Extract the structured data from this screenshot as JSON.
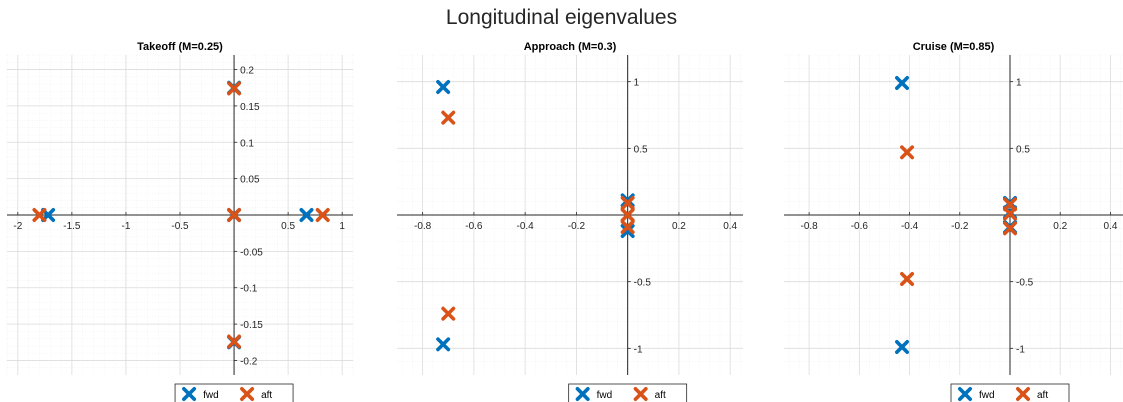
{
  "page": {
    "title": "Longitudinal eigenvalues"
  },
  "colors": {
    "fwd": "#0072BD",
    "aft": "#D95319",
    "axis": "#262626",
    "grid_major": "#dcdcdc",
    "grid_minor": "#efefef"
  },
  "chart_data": [
    {
      "type": "scatter",
      "title": "Takeoff (M=0.25)",
      "xlabel": "",
      "ylabel": "",
      "xlim": [
        -2.1,
        1.1
      ],
      "ylim": [
        -0.22,
        0.22
      ],
      "xticks": [
        -2,
        -1.5,
        -1,
        -0.5,
        0.5,
        1
      ],
      "xtick_labels": [
        "-2",
        "-1.5",
        "-1",
        "-0.5",
        "0.5",
        "1"
      ],
      "yticks": [
        0.2,
        0.15,
        0.1,
        0.05,
        -0.05,
        -0.1,
        -0.15,
        -0.2
      ],
      "ytick_labels": [
        "0.2",
        "0.15",
        "0.1",
        "0.05",
        "-0.05",
        "-0.1",
        "-0.15",
        "-0.2"
      ],
      "grid": true,
      "legend": "bottom",
      "series": [
        {
          "name": "fwd",
          "marker": "x",
          "points": [
            [
              -1.72,
              0
            ],
            [
              0.0,
              0.175
            ],
            [
              0.0,
              -0.175
            ],
            [
              0.0,
              0
            ],
            [
              0.67,
              0
            ]
          ]
        },
        {
          "name": "aft",
          "marker": "x",
          "points": [
            [
              -1.8,
              0
            ],
            [
              0.0,
              0.174
            ],
            [
              0.0,
              -0.174
            ],
            [
              0.0,
              0
            ],
            [
              0.82,
              0
            ]
          ]
        }
      ]
    },
    {
      "type": "scatter",
      "title": "Approach (M=0.3)",
      "xlabel": "",
      "ylabel": "",
      "xlim": [
        -0.9,
        0.45
      ],
      "ylim": [
        -1.2,
        1.2
      ],
      "xticks": [
        -0.8,
        -0.6,
        -0.4,
        -0.2,
        0.2,
        0.4
      ],
      "xtick_labels": [
        "-0.8",
        "-0.6",
        "-0.4",
        "-0.2",
        "0.2",
        "0.4"
      ],
      "yticks": [
        1,
        0.5,
        -0.5,
        -1
      ],
      "ytick_labels": [
        "1",
        "0.5",
        "-0.5",
        "-1"
      ],
      "grid": true,
      "legend": "bottom",
      "series": [
        {
          "name": "fwd",
          "marker": "x",
          "points": [
            [
              -0.72,
              0.96
            ],
            [
              -0.72,
              -0.97
            ],
            [
              0.0,
              0.11
            ],
            [
              0.0,
              -0.12
            ]
          ]
        },
        {
          "name": "aft",
          "marker": "x",
          "points": [
            [
              -0.7,
              0.73
            ],
            [
              -0.7,
              -0.74
            ],
            [
              0.0,
              0.09
            ],
            [
              0.0,
              0.0
            ],
            [
              0.0,
              -0.09
            ]
          ]
        }
      ]
    },
    {
      "type": "scatter",
      "title": "Cruise (M=0.85)",
      "xlabel": "",
      "ylabel": "",
      "xlim": [
        -0.9,
        0.45
      ],
      "ylim": [
        -1.2,
        1.2
      ],
      "xticks": [
        -0.8,
        -0.6,
        -0.4,
        -0.2,
        0.2,
        0.4
      ],
      "xtick_labels": [
        "-0.8",
        "-0.6",
        "-0.4",
        "-0.2",
        "0.2",
        "0.4"
      ],
      "yticks": [
        1,
        0.5,
        -0.5,
        -1
      ],
      "ytick_labels": [
        "1",
        "0.5",
        "-0.5",
        "-1"
      ],
      "grid": true,
      "legend": "bottom",
      "series": [
        {
          "name": "fwd",
          "marker": "x",
          "points": [
            [
              -0.43,
              0.99
            ],
            [
              -0.43,
              -0.99
            ],
            [
              0.0,
              0.09
            ],
            [
              0.0,
              0.02
            ],
            [
              0.0,
              -0.09
            ]
          ]
        },
        {
          "name": "aft",
          "marker": "x",
          "points": [
            [
              -0.41,
              0.47
            ],
            [
              -0.41,
              -0.48
            ],
            [
              0.0,
              0.08
            ],
            [
              0.0,
              0.01
            ],
            [
              0.0,
              -0.1
            ]
          ]
        }
      ]
    }
  ]
}
